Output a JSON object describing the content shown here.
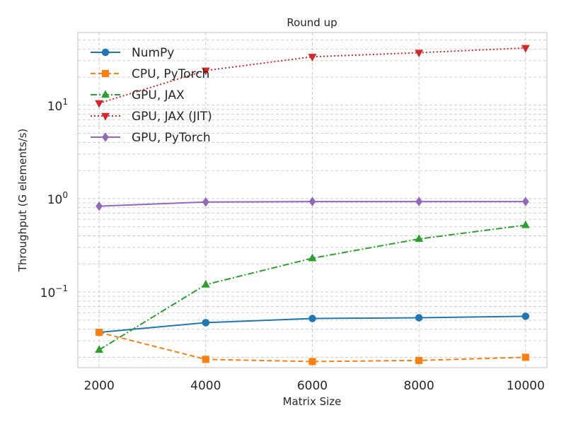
{
  "chart_data": {
    "type": "line",
    "title": "Round up",
    "xlabel": "Matrix Size",
    "ylabel": "Throughput (G elements/s)",
    "yscale": "log",
    "x": [
      2000,
      4000,
      6000,
      8000,
      10000
    ],
    "xlim": [
      1600,
      10400
    ],
    "ylim": [
      0.0155,
      60
    ],
    "x_ticks": [
      "2000",
      "4000",
      "6000",
      "8000",
      "10000"
    ],
    "y_ticks": [
      {
        "value": 0.1,
        "base": "10",
        "exp": "−1"
      },
      {
        "value": 1,
        "base": "10",
        "exp": "0"
      },
      {
        "value": 10,
        "base": "10",
        "exp": "1"
      }
    ],
    "grid": true,
    "legend_position": "upper-left",
    "series": [
      {
        "name": "NumPy",
        "values": [
          0.037,
          0.047,
          0.052,
          0.053,
          0.055
        ],
        "color": "#1f77b4",
        "dash": "solid",
        "marker": "circle"
      },
      {
        "name": "CPU, PyTorch",
        "values": [
          0.037,
          0.019,
          0.018,
          0.0185,
          0.02
        ],
        "color": "#ff7f0e",
        "dash": "dashed",
        "marker": "square"
      },
      {
        "name": "GPU, JAX",
        "values": [
          0.024,
          0.12,
          0.23,
          0.37,
          0.52
        ],
        "color": "#2ca02c",
        "dash": "dashdot",
        "marker": "triangle-up"
      },
      {
        "name": "GPU, JAX (JIT)",
        "values": [
          10.5,
          23.5,
          33.0,
          36.5,
          41.0
        ],
        "color": "#d62728",
        "dash": "dotted",
        "marker": "triangle-down"
      },
      {
        "name": "GPU, PyTorch",
        "values": [
          0.83,
          0.92,
          0.93,
          0.93,
          0.93
        ],
        "color": "#9467bd",
        "dash": "solid",
        "marker": "diamond"
      }
    ]
  }
}
